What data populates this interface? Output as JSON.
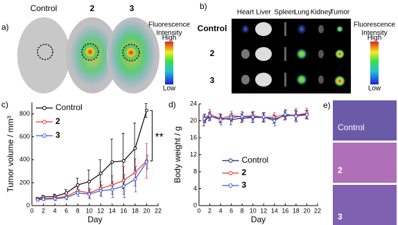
{
  "panel_a": {
    "label": "a)",
    "columns": [
      "Control",
      "2",
      "3"
    ],
    "colorbar": {
      "title_lines": [
        "Fluorescence",
        "Intensity"
      ],
      "high": "High",
      "low": "Low"
    }
  },
  "panel_b": {
    "label": "b)",
    "organs": [
      "Heart",
      "Liver",
      "Spleen",
      "Lung",
      "Kidney",
      "Tumor"
    ],
    "rows": [
      "Control",
      "2",
      "3"
    ],
    "colorbar": {
      "title_lines": [
        "Fluorescence",
        "Intensity"
      ],
      "high": "High",
      "low": "Low"
    }
  },
  "panel_e": {
    "label": "e)",
    "images": [
      "Control",
      "2",
      "3"
    ]
  },
  "chart_data": [
    {
      "type": "line",
      "panel_label": "c)",
      "x_label": "Day",
      "y_label": "Tumor volume / mm³",
      "legend": "upper left",
      "annotation": "**",
      "x": [
        1,
        2,
        4,
        6,
        8,
        10,
        12,
        14,
        16,
        18,
        20
      ],
      "xlim": [
        0,
        22
      ],
      "xticks": [
        0,
        2,
        4,
        6,
        8,
        10,
        12,
        14,
        16,
        18,
        20,
        22
      ],
      "ylim": [
        0,
        900
      ],
      "yticks": [
        0,
        200,
        400,
        600,
        800
      ],
      "series": [
        {
          "name": "Control",
          "color": "#000000",
          "values": [
            60,
            75,
            80,
            110,
            180,
            210,
            280,
            380,
            390,
            500,
            830
          ],
          "errors": [
            10,
            15,
            20,
            30,
            60,
            100,
            120,
            200,
            240,
            220,
            60
          ]
        },
        {
          "name": "2",
          "color": "#e8302a",
          "values": [
            55,
            60,
            65,
            80,
            130,
            110,
            150,
            180,
            220,
            290,
            390
          ],
          "errors": [
            10,
            10,
            15,
            20,
            30,
            40,
            60,
            80,
            120,
            120,
            150
          ]
        },
        {
          "name": "3",
          "color": "#3355cc",
          "values": [
            50,
            55,
            60,
            70,
            110,
            100,
            130,
            140,
            170,
            230,
            380
          ],
          "errors": [
            10,
            10,
            15,
            20,
            30,
            40,
            50,
            70,
            100,
            110,
            60
          ]
        }
      ]
    },
    {
      "type": "line",
      "panel_label": "d)",
      "x_label": "Day",
      "y_label": "Body weight / g",
      "legend": "lower center",
      "x": [
        1,
        2,
        4,
        6,
        8,
        10,
        12,
        14,
        16,
        18,
        20
      ],
      "xlim": [
        0,
        22
      ],
      "xticks": [
        0,
        2,
        4,
        6,
        8,
        10,
        12,
        14,
        16,
        18,
        20,
        22
      ],
      "ylim": [
        0,
        24
      ],
      "yticks": [
        0,
        4,
        8,
        12,
        16,
        20,
        24
      ],
      "series": [
        {
          "name": "Control",
          "color": "#1a1a5e",
          "values": [
            20.0,
            21.0,
            20.6,
            20.3,
            20.6,
            20.8,
            20.8,
            20.4,
            21.2,
            21.3,
            21.5
          ],
          "errors": [
            1.2,
            1.0,
            1.0,
            1.2,
            1.0,
            1.2,
            1.0,
            1.0,
            1.0,
            1.2,
            1.0
          ]
        },
        {
          "name": "2",
          "color": "#e8302a",
          "values": [
            20.6,
            21.5,
            20.5,
            21.2,
            21.0,
            21.2,
            20.8,
            20.9,
            21.5,
            21.3,
            21.8
          ],
          "errors": [
            1.0,
            1.2,
            1.0,
            1.0,
            1.2,
            1.0,
            1.2,
            1.0,
            1.2,
            1.6,
            1.2
          ]
        },
        {
          "name": "3",
          "color": "#3355cc",
          "values": [
            20.5,
            21.2,
            20.2,
            20.8,
            21.0,
            20.9,
            20.9,
            20.0,
            21.5,
            21.1,
            21.4
          ],
          "errors": [
            1.0,
            1.0,
            1.2,
            1.0,
            1.0,
            1.2,
            1.0,
            1.2,
            1.0,
            1.2,
            1.0
          ]
        }
      ]
    }
  ]
}
